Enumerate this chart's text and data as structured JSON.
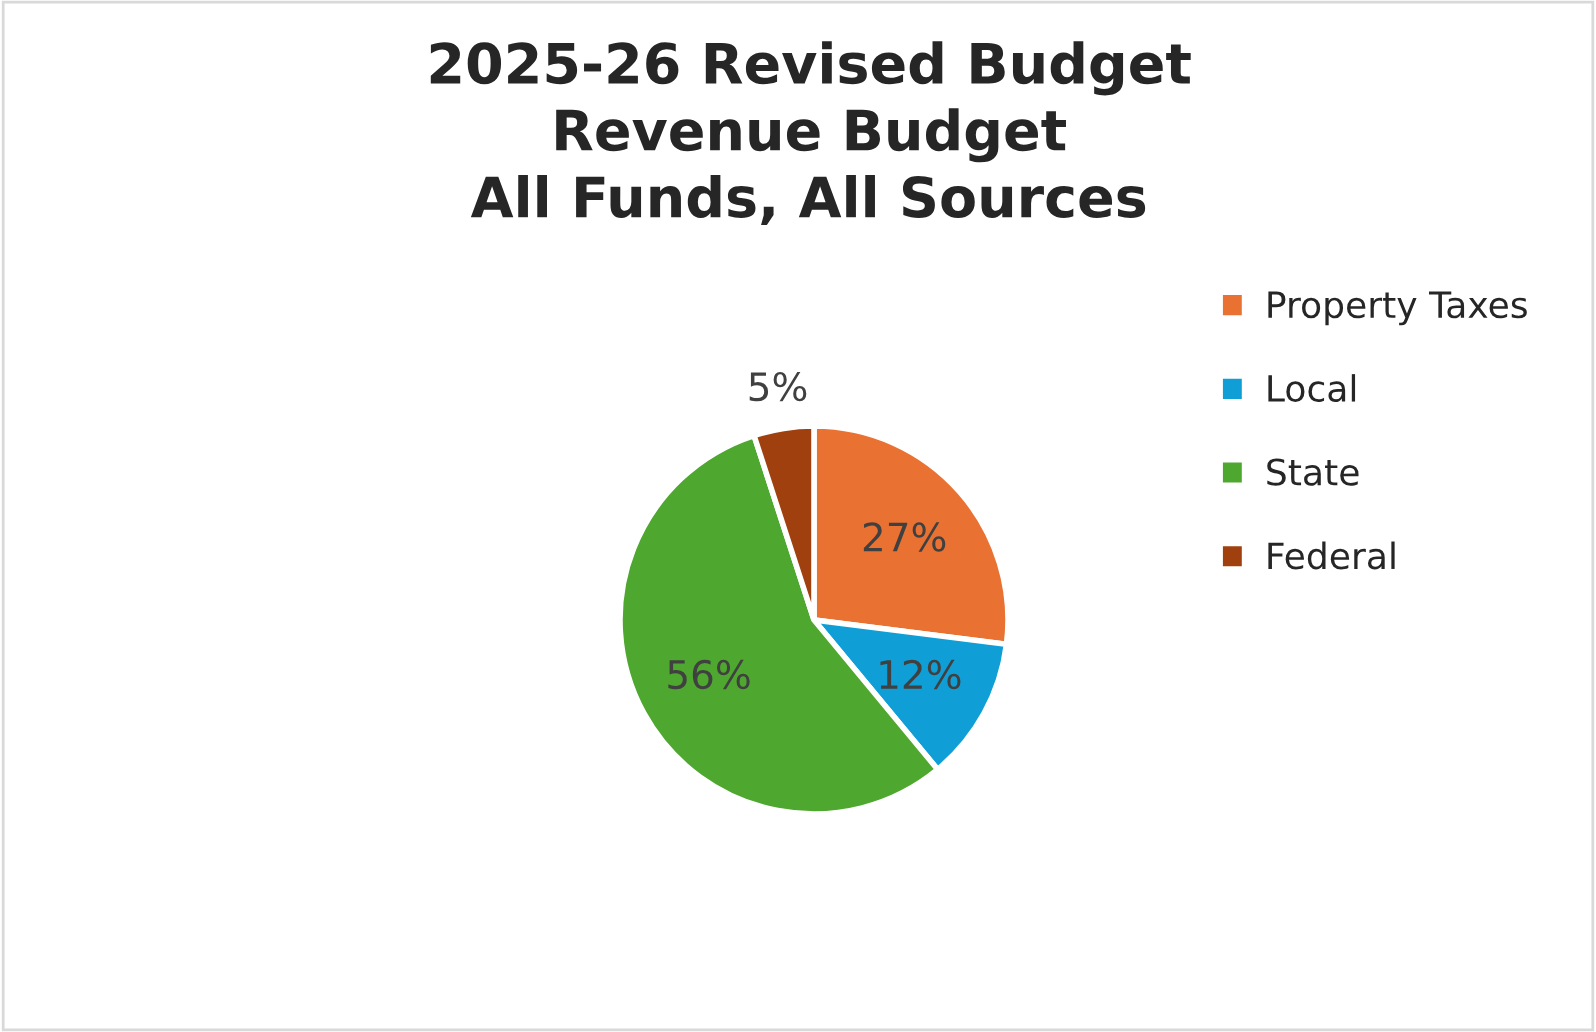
{
  "chart_data": {
    "type": "pie",
    "title": "2025-26 Revised Budget\nRevenue Budget\nAll Funds, All Sources",
    "categories": [
      "Property Taxes",
      "Local",
      "State",
      "Federal"
    ],
    "values": [
      27,
      12,
      56,
      5
    ],
    "colors": [
      "#e97132",
      "#0f9ed5",
      "#4ea72e",
      "#a0400f"
    ],
    "value_labels": [
      "27%",
      "12%",
      "56%",
      "5%"
    ],
    "legend": "right"
  }
}
